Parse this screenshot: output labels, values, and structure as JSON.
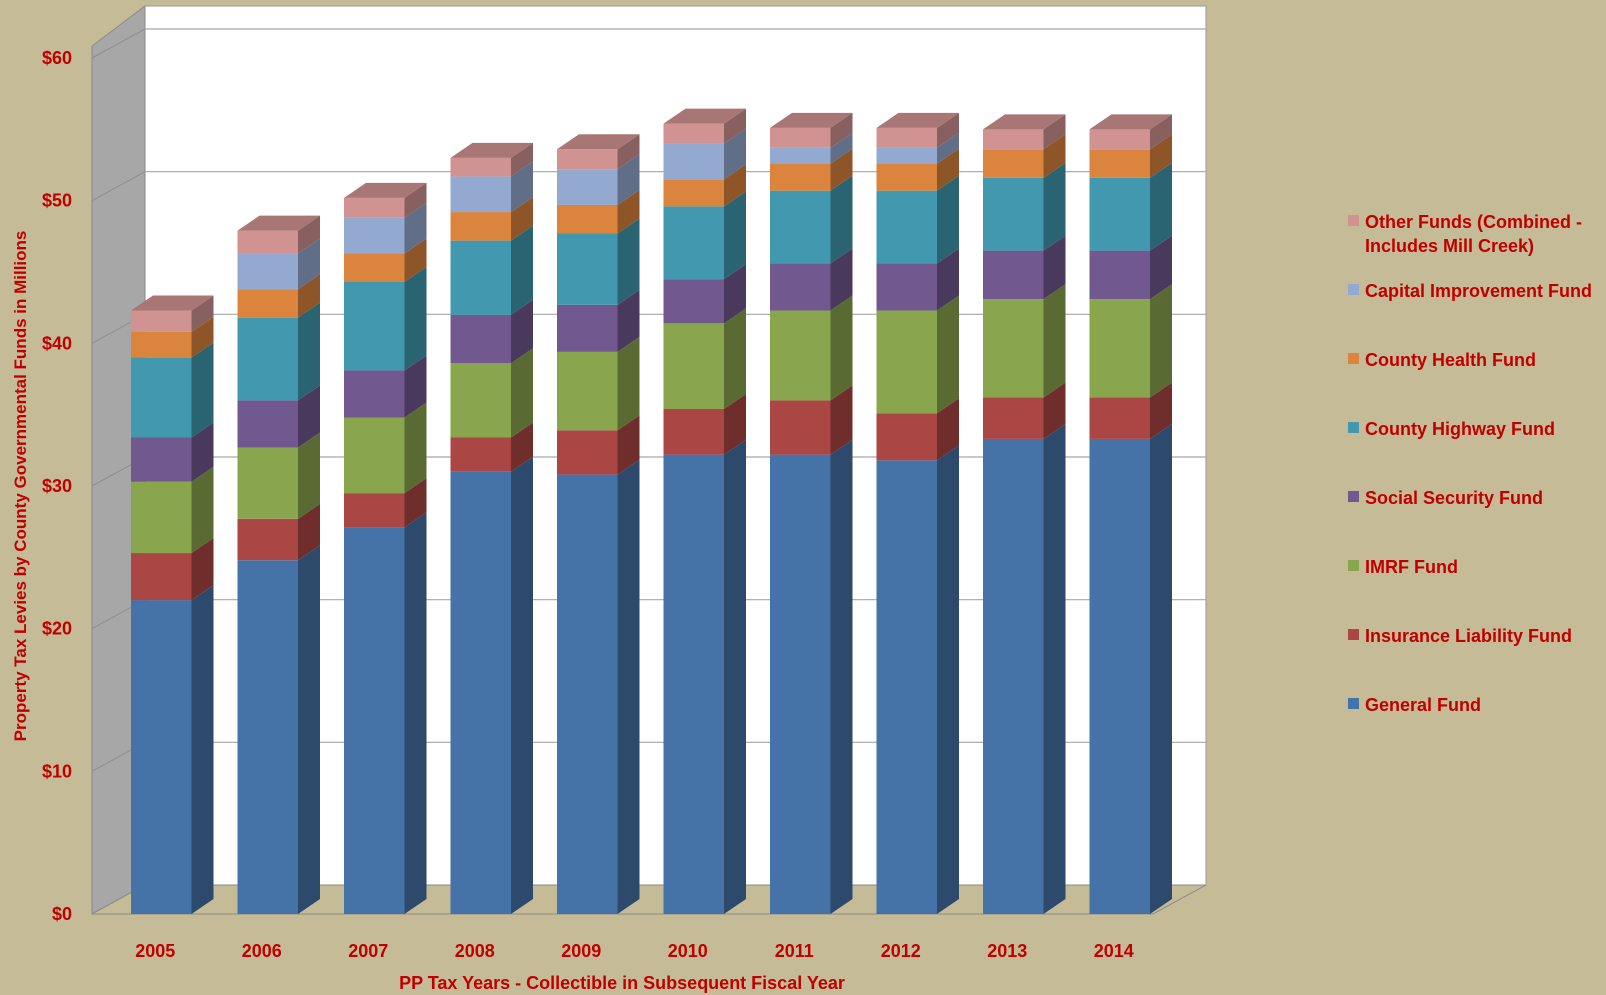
{
  "chart_data": {
    "type": "bar",
    "stacked": true,
    "style_3d": true,
    "categories": [
      "2005",
      "2006",
      "2007",
      "2008",
      "2009",
      "2010",
      "2011",
      "2012",
      "2013",
      "2014"
    ],
    "series": [
      {
        "name": "General Fund",
        "color": "#4572a7",
        "values": [
          22.0,
          24.8,
          27.1,
          31.0,
          30.8,
          32.2,
          32.2,
          31.8,
          33.3,
          33.3
        ]
      },
      {
        "name": "Insurance Liability Fund",
        "color": "#aa4643",
        "values": [
          3.3,
          2.9,
          2.4,
          2.4,
          3.1,
          3.2,
          3.8,
          3.3,
          2.9,
          2.9
        ]
      },
      {
        "name": "IMRF Fund",
        "color": "#89a54e",
        "values": [
          5.0,
          5.0,
          5.3,
          5.2,
          5.5,
          6.0,
          6.3,
          7.2,
          6.9,
          6.9
        ]
      },
      {
        "name": "Social Security Fund",
        "color": "#71588f",
        "values": [
          3.1,
          3.3,
          3.3,
          3.4,
          3.3,
          3.1,
          3.3,
          3.3,
          3.4,
          3.4
        ]
      },
      {
        "name": "County Highway Fund",
        "color": "#4198af",
        "values": [
          5.6,
          5.8,
          6.2,
          5.2,
          5.0,
          5.1,
          5.1,
          5.1,
          5.1,
          5.1
        ]
      },
      {
        "name": "County Health Fund",
        "color": "#db843d",
        "values": [
          1.8,
          2.0,
          2.0,
          2.0,
          2.0,
          1.9,
          1.9,
          1.9,
          2.0,
          2.0
        ]
      },
      {
        "name": "Capital Improvement Fund",
        "color": "#93a9cf",
        "values": [
          0.0,
          2.5,
          2.5,
          2.5,
          2.5,
          2.5,
          1.1,
          1.1,
          0.0,
          0.0
        ]
      },
      {
        "name": "Other Funds (Combined - Includes Mill Creek)",
        "color": "#d19392",
        "values": [
          1.5,
          1.6,
          1.4,
          1.3,
          1.4,
          1.4,
          1.4,
          1.4,
          1.4,
          1.4
        ]
      }
    ],
    "yticks": [
      "$0",
      "$10",
      "$20",
      "$30",
      "$40",
      "$50",
      "$60"
    ],
    "ylim": [
      0,
      60
    ],
    "xlabel": "PP Tax Years - Collectible in Subsequent Fiscal Year",
    "ylabel": "Property Tax Levies by County Governmental Funds in Millions",
    "legend": {
      "position": "right",
      "order": [
        "Other Funds (Combined - Includes Mill Creek)",
        "Capital Improvement Fund",
        "County Health Fund",
        "County Highway Fund",
        "Social Security Fund",
        "IMRF Fund",
        "Insurance Liability Fund",
        "General Fund"
      ]
    },
    "colors": {
      "background": "#c5bc97",
      "plot_back_wall": "#ffffff",
      "plot_side_wall": "#a7a7a7",
      "floor": "#c5bc97",
      "gridline": "#a6a6a6",
      "text": "#c00000"
    }
  }
}
